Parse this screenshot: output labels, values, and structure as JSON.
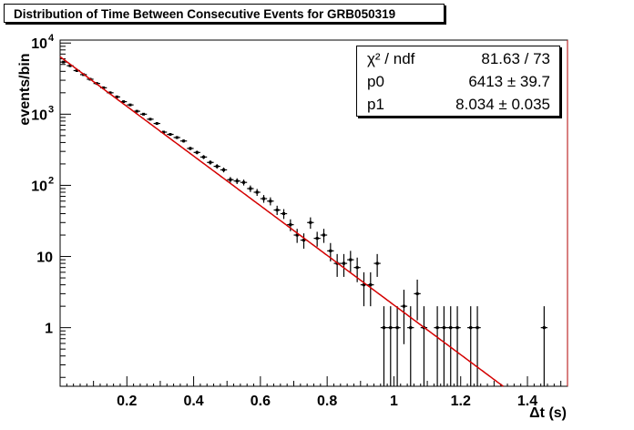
{
  "chart_data": {
    "type": "scatter",
    "title": "Distribution of Time Between Consecutive Events for GRB050319",
    "xlabel": "Δt (s)",
    "ylabel": "events/bin",
    "xlim": [
      0,
      1.52
    ],
    "ylim": [
      0.15,
      11000
    ],
    "y_scale": "log",
    "grid": false,
    "x_ticks": [
      {
        "value": 0.2,
        "label": "0.2"
      },
      {
        "value": 0.4,
        "label": "0.4"
      },
      {
        "value": 0.6,
        "label": "0.6"
      },
      {
        "value": 0.8,
        "label": "0.8"
      },
      {
        "value": 1.0,
        "label": "1"
      },
      {
        "value": 1.2,
        "label": "1.2"
      },
      {
        "value": 1.4,
        "label": "1.4"
      }
    ],
    "y_ticks": [
      {
        "value": 1,
        "label": "1"
      },
      {
        "value": 10,
        "label": "10"
      },
      {
        "value": 100,
        "label": "10",
        "exp": "2"
      },
      {
        "value": 1000,
        "label": "10",
        "exp": "3"
      },
      {
        "value": 10000,
        "label": "10",
        "exp": "4"
      }
    ],
    "bin_width": 0.02,
    "series": [
      {
        "kind": "histogram",
        "x": [
          0.01,
          0.03,
          0.05,
          0.07,
          0.09,
          0.11,
          0.13,
          0.15,
          0.17,
          0.19,
          0.21,
          0.23,
          0.25,
          0.27,
          0.29,
          0.31,
          0.33,
          0.35,
          0.37,
          0.39,
          0.41,
          0.43,
          0.45,
          0.47,
          0.49,
          0.51,
          0.53,
          0.55,
          0.57,
          0.59,
          0.61,
          0.63,
          0.65,
          0.67,
          0.69,
          0.71,
          0.73,
          0.75,
          0.77,
          0.79,
          0.81,
          0.83,
          0.85,
          0.87,
          0.89,
          0.91,
          0.93,
          0.95,
          0.97,
          0.99,
          1.01,
          1.03,
          1.05,
          1.07,
          1.09,
          1.13,
          1.15,
          1.17,
          1.19,
          1.23,
          1.25,
          1.45
        ],
        "y": [
          5400,
          4800,
          4100,
          3600,
          3100,
          2700,
          2350,
          2000,
          1750,
          1500,
          1350,
          1100,
          1000,
          850,
          740,
          560,
          520,
          470,
          420,
          330,
          290,
          250,
          210,
          185,
          165,
          120,
          115,
          110,
          90,
          80,
          65,
          60,
          45,
          40,
          28,
          20,
          17,
          30,
          18,
          20,
          12,
          8,
          8,
          9,
          7,
          4,
          4,
          8,
          1,
          1,
          1,
          2,
          1,
          3,
          1,
          1,
          1,
          1,
          1,
          1,
          1,
          1
        ]
      },
      {
        "kind": "fit",
        "function": "p0 * exp(-p1 * x)",
        "p0": 6413,
        "p1": 8.034
      }
    ],
    "colors": {
      "data": "#000000",
      "fit": "#d40000",
      "frame": "#000000"
    }
  },
  "stats": {
    "rows": [
      {
        "label": "χ² / ndf",
        "value": "81.63 / 73"
      },
      {
        "label": "p0",
        "value": "6413 ± 39.7"
      },
      {
        "label": "p1",
        "value": "8.034 ± 0.035"
      }
    ]
  }
}
